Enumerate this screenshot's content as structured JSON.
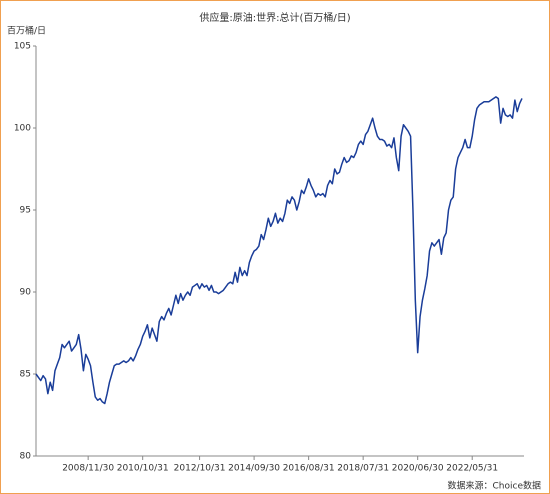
{
  "chart_data": {
    "type": "line",
    "title": "供应量:原油:世界:总计(百万桶/日)",
    "y_axis_label": "百万桶/日",
    "source": "数据来源：Choice数据",
    "categories": [
      null,
      null,
      null,
      null,
      null,
      null,
      null,
      null,
      null,
      null,
      null,
      null,
      null,
      null,
      null,
      null,
      null,
      null,
      null,
      null,
      null,
      null,
      "2008/11/30",
      null,
      null,
      null,
      null,
      null,
      null,
      null,
      null,
      null,
      null,
      null,
      null,
      null,
      null,
      null,
      null,
      null,
      null,
      null,
      null,
      null,
      null,
      "2010/10/31",
      null,
      null,
      null,
      null,
      null,
      null,
      null,
      null,
      null,
      null,
      null,
      null,
      null,
      null,
      null,
      null,
      null,
      null,
      null,
      null,
      null,
      null,
      null,
      "2012/10/31",
      null,
      null,
      null,
      null,
      null,
      null,
      null,
      null,
      null,
      null,
      null,
      null,
      null,
      null,
      null,
      null,
      null,
      null,
      null,
      null,
      null,
      null,
      "2014/09/30",
      null,
      null,
      null,
      null,
      null,
      null,
      null,
      null,
      null,
      null,
      null,
      null,
      null,
      null,
      null,
      null,
      null,
      null,
      null,
      null,
      null,
      null,
      "2016/08/31",
      null,
      null,
      null,
      null,
      null,
      null,
      null,
      null,
      null,
      null,
      null,
      null,
      null,
      null,
      null,
      null,
      null,
      null,
      null,
      null,
      null,
      null,
      "2018/07/31",
      null,
      null,
      null,
      null,
      null,
      null,
      null,
      null,
      null,
      null,
      null,
      null,
      null,
      null,
      null,
      null,
      null,
      null,
      null,
      null,
      null,
      null,
      "2020/06/30",
      null,
      null,
      null,
      null,
      null,
      null,
      null,
      null,
      null,
      null,
      null,
      null,
      null,
      null,
      null,
      null,
      null,
      null,
      null,
      null,
      null,
      null,
      "2022/05/31",
      null,
      null,
      null,
      null,
      null,
      null,
      null,
      null,
      null,
      null,
      null,
      null,
      null,
      null,
      null,
      null,
      null,
      null,
      null,
      null,
      null
    ],
    "series": [
      {
        "color": "#1a3d99",
        "values": [
          85.0,
          84.8,
          84.6,
          84.9,
          84.7,
          83.8,
          84.5,
          84.0,
          85.2,
          85.6,
          86.0,
          86.8,
          86.6,
          86.8,
          87.0,
          86.4,
          86.6,
          86.8,
          87.4,
          86.5,
          85.2,
          86.2,
          85.9,
          85.5,
          84.5,
          83.6,
          83.4,
          83.5,
          83.3,
          83.2,
          83.8,
          84.5,
          85.0,
          85.5,
          85.6,
          85.6,
          85.7,
          85.8,
          85.7,
          85.8,
          86.0,
          85.8,
          86.1,
          86.5,
          86.8,
          87.3,
          87.6,
          88.0,
          87.2,
          87.8,
          87.4,
          87.0,
          88.2,
          88.5,
          88.3,
          88.7,
          89.0,
          88.6,
          89.2,
          89.8,
          89.3,
          89.9,
          89.5,
          89.8,
          90.0,
          89.8,
          90.3,
          90.4,
          90.5,
          90.2,
          90.5,
          90.3,
          90.4,
          90.1,
          90.4,
          90.0,
          90.0,
          89.9,
          90.0,
          90.1,
          90.3,
          90.5,
          90.6,
          90.5,
          91.2,
          90.6,
          91.5,
          91.0,
          91.3,
          91.0,
          91.8,
          92.2,
          92.5,
          92.6,
          92.8,
          93.5,
          93.2,
          93.8,
          94.5,
          94.0,
          94.3,
          94.8,
          94.2,
          94.5,
          94.3,
          94.8,
          95.6,
          95.4,
          95.8,
          95.6,
          95.0,
          95.5,
          96.2,
          96.0,
          96.4,
          96.9,
          96.5,
          96.2,
          95.8,
          96.0,
          95.9,
          96.0,
          95.8,
          96.5,
          96.8,
          96.6,
          97.5,
          97.2,
          97.3,
          97.8,
          98.2,
          97.9,
          98.0,
          98.3,
          98.2,
          98.5,
          99.0,
          99.2,
          99.0,
          99.6,
          99.8,
          100.2,
          100.6,
          100.0,
          99.5,
          99.3,
          99.3,
          99.2,
          98.9,
          99.0,
          98.8,
          99.4,
          98.2,
          97.4,
          99.5,
          100.2,
          100.0,
          99.8,
          99.5,
          95.0,
          89.5,
          86.3,
          88.5,
          89.5,
          90.2,
          91.0,
          92.5,
          93.0,
          92.8,
          93.0,
          93.2,
          92.3,
          93.3,
          93.6,
          95.0,
          95.6,
          95.8,
          97.5,
          98.2,
          98.5,
          98.8,
          99.3,
          98.8,
          98.8,
          99.5,
          100.5,
          101.2,
          101.4,
          101.5,
          101.6,
          101.6,
          101.6,
          101.7,
          101.8,
          101.9,
          101.8,
          100.3,
          101.2,
          100.8,
          100.7,
          100.8,
          100.6,
          101.7,
          101.0,
          101.5,
          101.8
        ]
      }
    ],
    "ylim": [
      80,
      105
    ],
    "yticks": [
      80,
      85,
      90,
      95,
      100,
      105
    ],
    "grid": false
  }
}
